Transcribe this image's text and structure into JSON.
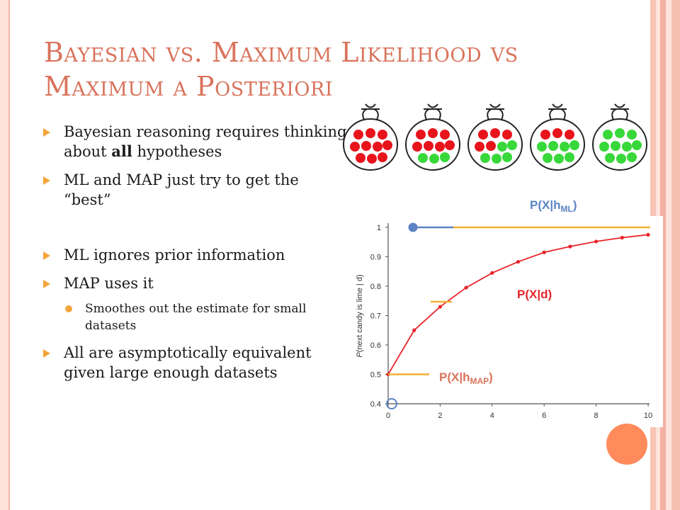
{
  "slide": {
    "title_line1": "Bayesian vs. Maximum Likelihood vs",
    "title_line2": "Maximum a Posteriori",
    "bullets": [
      {
        "pre": "Bayesian reasoning requires thinking about ",
        "bold": "all",
        "post": " hypotheses"
      },
      {
        "text": "ML and MAP just try to get the “best”"
      },
      {
        "text": "ML ignores prior information"
      },
      {
        "text": "MAP uses it"
      },
      {
        "text": "Smoothes out the estimate for small datasets"
      },
      {
        "text": "All are asymptotically equivalent given large enough datasets"
      }
    ]
  },
  "bag_figure": {
    "bags": [
      {
        "red": 10,
        "green": 0
      },
      {
        "red": 7,
        "green": 3
      },
      {
        "red": 5,
        "green": 5
      },
      {
        "red": 3,
        "green": 7
      },
      {
        "red": 0,
        "green": 10
      }
    ],
    "colors": {
      "red": "#e8141c",
      "green": "#38d83a",
      "outline": "#222222"
    }
  },
  "annotations": {
    "ml_label": {
      "main": "P(X|h",
      "sub": "ML",
      "close": ")"
    },
    "posterior_label": "P(X|d)",
    "map_label": {
      "main": "P(X|h",
      "sub": "MAP",
      "close": ")"
    }
  },
  "chart_data": {
    "type": "line",
    "ylabel_pre": "P",
    "ylabel_post": "(next candy is lime | d)",
    "x": [
      0,
      1,
      2,
      3,
      4,
      5,
      6,
      7,
      8,
      9,
      10
    ],
    "series": [
      {
        "values": [
          0.5,
          0.65,
          0.73,
          0.795,
          0.845,
          0.883,
          0.915,
          0.935,
          0.952,
          0.965,
          0.975
        ],
        "color": "#e8242a"
      }
    ],
    "xticks": [
      "0",
      "2",
      "4",
      "6",
      "8",
      "10"
    ],
    "yticks": [
      "0.4",
      "0.5",
      "0.6",
      "0.7",
      "0.8",
      "0.9",
      "1"
    ],
    "xlim": [
      0,
      10
    ],
    "ylim": [
      0.4,
      1
    ],
    "ml_value": 1.0,
    "map_value": 0.5,
    "colors": {
      "accent": "#d9735b",
      "ml_line": "#f2b134",
      "blue": "#5b84c4",
      "posterior_label": "#e8242a"
    }
  }
}
